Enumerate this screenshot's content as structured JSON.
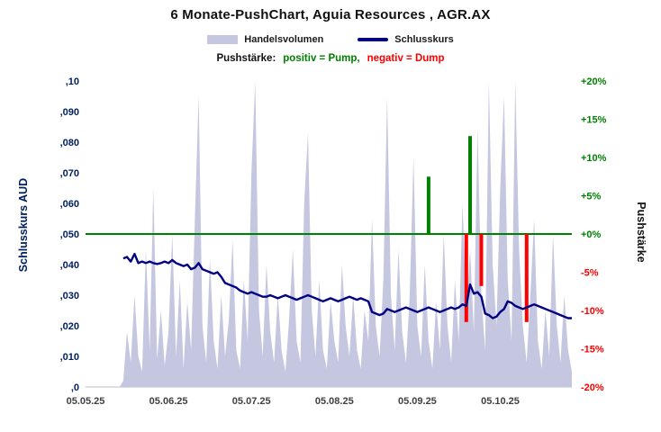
{
  "title": "6 Monate-PushChart,  Aguia Resources , AGR.AX",
  "legend": {
    "volume_label": "Handelsvolumen",
    "close_label": "Schlusskurs"
  },
  "push_note": {
    "prefix": "Pushstärke:",
    "positive": "positiv = Pump,",
    "negative": "negativ = Dump"
  },
  "colors": {
    "volume": "#c5c6e0",
    "close_line": "#000080",
    "positive": "#008000",
    "negative": "#ff0000",
    "left_axis_text": "#002060",
    "x_axis_text": "#404040"
  },
  "chart_data": {
    "type": "combo",
    "title": "6 Monate-PushChart,  Aguia Resources , AGR.AX",
    "legend_entries": [
      "Handelsvolumen",
      "Schlusskurs"
    ],
    "x_axis": {
      "n_points": 130,
      "tick_labels": [
        "05.05.25",
        "05.06.25",
        "05.07.25",
        "05.08.25",
        "05.09.25",
        "05.10.25"
      ],
      "tick_indices": [
        0,
        22,
        44,
        66,
        88,
        110
      ]
    },
    "left_axis": {
      "title": "Schlusskurs AUD",
      "range": [
        0,
        0.1
      ],
      "tick_values": [
        0,
        0.01,
        0.02,
        0.03,
        0.04,
        0.05,
        0.06,
        0.07,
        0.08,
        0.09,
        0.1
      ],
      "tick_labels": [
        ",0",
        ",010",
        ",020",
        ",030",
        ",040",
        ",050",
        ",060",
        ",070",
        ",080",
        ",090",
        ",10"
      ]
    },
    "right_axis": {
      "title": "Pushstärke",
      "range": [
        -20,
        20
      ],
      "tick_values": [
        20,
        15,
        10,
        5,
        0,
        -5,
        -10,
        -15,
        -20
      ],
      "tick_labels": [
        "+20%",
        "+15%",
        "+10%",
        "+5%",
        "+0%",
        "-5%",
        "-10%",
        "-15%",
        "-20%"
      ]
    },
    "zero_line": {
      "value": 0,
      "color": "#008000"
    },
    "series": {
      "volume": {
        "name": "Handelsvolumen",
        "type": "area",
        "color": "#c5c6e0",
        "values": [
          0,
          0,
          0,
          0,
          0,
          0,
          0,
          0,
          0,
          0,
          0.02,
          0.18,
          0.08,
          0.3,
          0.1,
          0.05,
          0.45,
          0.12,
          0.65,
          0.09,
          0.25,
          0.07,
          0.18,
          0.5,
          0.1,
          0.35,
          0.06,
          0.28,
          0.12,
          0.55,
          0.95,
          0.2,
          0.08,
          0.42,
          0.15,
          0.06,
          0.3,
          0.1,
          0.22,
          0.48,
          0.12,
          0.06,
          0.35,
          0.15,
          0.7,
          1.0,
          0.25,
          0.1,
          0.4,
          0.18,
          0.08,
          0.3,
          0.12,
          0.05,
          0.22,
          0.45,
          0.15,
          0.08,
          0.6,
          0.83,
          0.25,
          0.1,
          0.35,
          0.12,
          0.06,
          0.28,
          0.15,
          0.08,
          0.4,
          0.2,
          0.1,
          0.3,
          0.12,
          0.06,
          0.25,
          0.15,
          0.55,
          0.2,
          0.1,
          0.35,
          0.95,
          0.3,
          0.12,
          0.45,
          0.18,
          0.08,
          0.3,
          0.75,
          0.2,
          0.1,
          0.4,
          0.15,
          0.06,
          0.28,
          0.12,
          0.5,
          0.2,
          0.08,
          0.35,
          0.15,
          0.6,
          0.25,
          0.45,
          0.18,
          0.85,
          0.3,
          0.12,
          1.0,
          0.4,
          0.2,
          0.65,
          0.95,
          0.35,
          0.15,
          1.0,
          0.45,
          0.2,
          0.08,
          0.3,
          0.55,
          0.15,
          0.06,
          0.25,
          0.1,
          0.5,
          0.2,
          0.08,
          0.3,
          0.12,
          0.05
        ]
      },
      "close": {
        "name": "Schlusskurs",
        "type": "line",
        "color": "#000080",
        "start_index": 10,
        "values": [
          0.042,
          0.0425,
          0.041,
          0.0435,
          0.0405,
          0.041,
          0.0405,
          0.041,
          0.0405,
          0.0402,
          0.0405,
          0.041,
          0.0405,
          0.0415,
          0.0405,
          0.04,
          0.0395,
          0.04,
          0.0385,
          0.039,
          0.0405,
          0.0385,
          0.038,
          0.0375,
          0.037,
          0.0375,
          0.036,
          0.034,
          0.0335,
          0.033,
          0.0325,
          0.0315,
          0.031,
          0.0305,
          0.031,
          0.0305,
          0.03,
          0.0295,
          0.0295,
          0.03,
          0.0295,
          0.029,
          0.0295,
          0.03,
          0.0295,
          0.029,
          0.0285,
          0.029,
          0.0295,
          0.03,
          0.0295,
          0.029,
          0.0285,
          0.028,
          0.0285,
          0.029,
          0.0285,
          0.028,
          0.0285,
          0.029,
          0.0295,
          0.029,
          0.0285,
          0.029,
          0.0285,
          0.028,
          0.0245,
          0.024,
          0.0235,
          0.024,
          0.0255,
          0.025,
          0.0245,
          0.025,
          0.0255,
          0.026,
          0.0255,
          0.025,
          0.0245,
          0.025,
          0.0255,
          0.026,
          0.0255,
          0.025,
          0.0245,
          0.025,
          0.0255,
          0.026,
          0.0255,
          0.026,
          0.027,
          0.0265,
          0.0335,
          0.0305,
          0.031,
          0.0295,
          0.024,
          0.0235,
          0.0225,
          0.023,
          0.0245,
          0.0255,
          0.028,
          0.0275,
          0.0265,
          0.026,
          0.0255,
          0.026,
          0.0265,
          0.027,
          0.0265,
          0.026,
          0.0255,
          0.025,
          0.0245,
          0.024,
          0.0235,
          0.023,
          0.0225,
          0.0225
        ]
      },
      "push": {
        "name": "Pushstärke",
        "type": "bar",
        "positive_color": "#008000",
        "negative_color": "#ff0000",
        "events": [
          {
            "index": 91,
            "value": 7.5
          },
          {
            "index": 101,
            "value": -11.5
          },
          {
            "index": 102,
            "value": 12.8
          },
          {
            "index": 105,
            "value": -6.8
          },
          {
            "index": 117,
            "value": -11.5
          }
        ]
      }
    }
  }
}
